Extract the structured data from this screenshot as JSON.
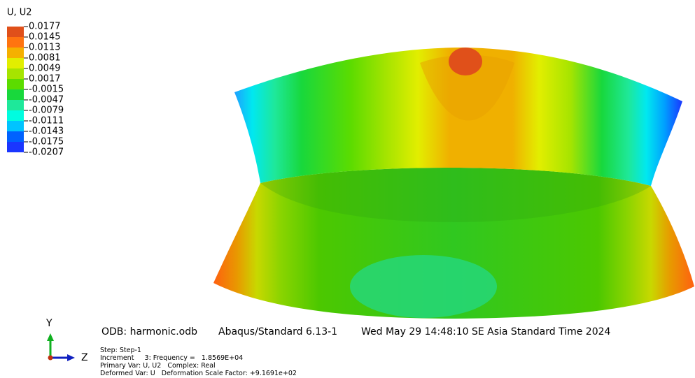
{
  "legend": {
    "title": "U, U2",
    "labels": [
      "0.0177",
      "0.0145",
      "0.0113",
      "0.0081",
      "0.0049",
      "0.0017",
      "-0.0015",
      "-0.0047",
      "-0.0079",
      "-0.0111",
      "-0.0143",
      "-0.0175",
      "-0.0207"
    ],
    "colors": [
      "#e0501a",
      "#ff7410",
      "#f5b000",
      "#e2ee00",
      "#a6e400",
      "#5cdc00",
      "#18d83c",
      "#1ee89a",
      "#00fde0",
      "#00c4ff",
      "#0062ff",
      "#1a36ff"
    ]
  },
  "info": {
    "odb": "ODB: harmonic.odb",
    "version": "Abaqus/Standard 6.13-1",
    "date": "Wed May 29 14:48:10 SE Asia Standard Time 2024",
    "lines": [
      "Step: Step-1",
      "Increment     3: Frequency =   1.8569E+04",
      "Primary Var: U, U2   Complex: Real",
      "Deformed Var: U   Deformation Scale Factor: +9.1691e+02"
    ]
  },
  "triad": {
    "y": "Y",
    "z": "Z"
  }
}
